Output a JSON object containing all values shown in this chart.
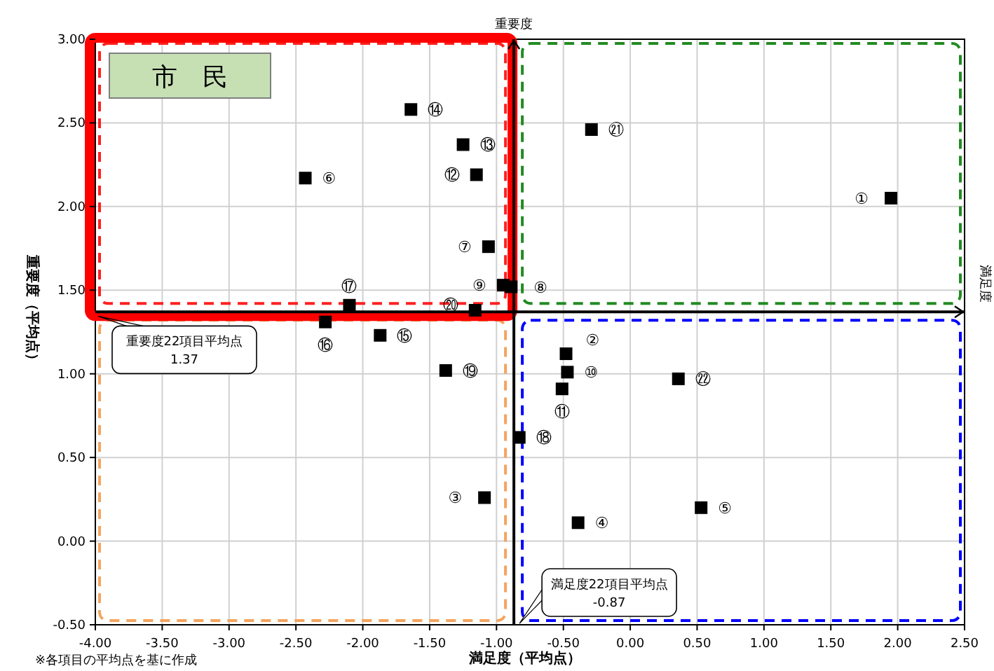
{
  "chart_data": {
    "type": "scatter",
    "title": "市　民",
    "xlabel": "満足度（平均点）",
    "ylabel": "重要度（平均点）",
    "annotations": [
      "重要度",
      "満足度",
      "※各項目の平均点を基に作成"
    ],
    "xlim": [
      -4,
      2.5
    ],
    "ylim": [
      -0.5,
      3
    ],
    "xticks": [
      {
        "value": -4,
        "label": "-4.00"
      },
      {
        "value": -3.5,
        "label": "-3.50"
      },
      {
        "value": -3,
        "label": "-3.00"
      },
      {
        "value": -2.5,
        "label": "-2.50"
      },
      {
        "value": -2,
        "label": "-2.00"
      },
      {
        "value": -1.5,
        "label": "-1.50"
      },
      {
        "value": -1,
        "label": "-1.00"
      },
      {
        "value": -0.5,
        "label": "-0.50"
      },
      {
        "value": 0,
        "label": "0.00"
      },
      {
        "value": 0.5,
        "label": "0.50"
      },
      {
        "value": 1,
        "label": "1.00"
      },
      {
        "value": 1.5,
        "label": "1.50"
      },
      {
        "value": 2,
        "label": "2.00"
      },
      {
        "value": 2.5,
        "label": "2.50"
      }
    ],
    "yticks": [
      {
        "value": -0.5,
        "label": "-0.50"
      },
      {
        "value": 0,
        "label": "0.00"
      },
      {
        "value": 0.5,
        "label": "0.50"
      },
      {
        "value": 1,
        "label": "1.00"
      },
      {
        "value": 1.5,
        "label": "1.50"
      },
      {
        "value": 2,
        "label": "2.00"
      },
      {
        "value": 2.5,
        "label": "2.50"
      },
      {
        "value": 3,
        "label": "3.00"
      }
    ],
    "grid": true,
    "marker": "square",
    "ref_lines": [
      {
        "axis": "y",
        "value": 1.37,
        "label": "重要度22項目平均点\n1.37",
        "color": "#000000"
      },
      {
        "axis": "x",
        "value": -0.87,
        "label": "満足度22項目平均点\n-0.87",
        "color": "#000000"
      }
    ],
    "series": [
      {
        "name": "①",
        "color": "#000000",
        "x": [
          1.95
        ],
        "values": [
          2.05
        ]
      },
      {
        "name": "②",
        "color": "#000000",
        "x": [
          -0.48
        ],
        "values": [
          1.12
        ]
      },
      {
        "name": "③",
        "color": "#000000",
        "x": [
          -1.09
        ],
        "values": [
          0.26
        ]
      },
      {
        "name": "④",
        "color": "#000000",
        "x": [
          -0.39
        ],
        "values": [
          0.11
        ]
      },
      {
        "name": "⑤",
        "color": "#000000",
        "x": [
          0.53
        ],
        "values": [
          0.2
        ]
      },
      {
        "name": "⑥",
        "color": "#000000",
        "x": [
          -2.43
        ],
        "values": [
          2.17
        ]
      },
      {
        "name": "⑦",
        "color": "#000000",
        "x": [
          -1.06
        ],
        "values": [
          1.76
        ]
      },
      {
        "name": "⑧",
        "color": "#000000",
        "x": [
          -0.89
        ],
        "values": [
          1.52
        ]
      },
      {
        "name": "⑨",
        "color": "#000000",
        "x": [
          -0.95
        ],
        "values": [
          1.53
        ]
      },
      {
        "name": "⑩",
        "color": "#000000",
        "x": [
          -0.47
        ],
        "values": [
          1.01
        ]
      },
      {
        "name": "⑪",
        "color": "#000000",
        "x": [
          -0.51
        ],
        "values": [
          0.91
        ]
      },
      {
        "name": "⑫",
        "color": "#000000",
        "x": [
          -1.15
        ],
        "values": [
          2.19
        ]
      },
      {
        "name": "⑬",
        "color": "#000000",
        "x": [
          -1.25
        ],
        "values": [
          2.37
        ]
      },
      {
        "name": "⑭",
        "color": "#000000",
        "x": [
          -1.64
        ],
        "values": [
          2.58
        ]
      },
      {
        "name": "⑮",
        "color": "#000000",
        "x": [
          -1.87
        ],
        "values": [
          1.23
        ]
      },
      {
        "name": "⑯",
        "color": "#000000",
        "x": [
          -2.28
        ],
        "values": [
          1.31
        ]
      },
      {
        "name": "⑰",
        "color": "#000000",
        "x": [
          -2.1
        ],
        "values": [
          1.41
        ]
      },
      {
        "name": "⑱",
        "color": "#000000",
        "x": [
          -0.83
        ],
        "values": [
          0.62
        ]
      },
      {
        "name": "⑲",
        "color": "#000000",
        "x": [
          -1.38
        ],
        "values": [
          1.02
        ]
      },
      {
        "name": "⑳",
        "color": "#000000",
        "x": [
          -1.16
        ],
        "values": [
          1.38
        ]
      },
      {
        "name": "㉑",
        "color": "#000000",
        "x": [
          -0.29
        ],
        "values": [
          2.46
        ]
      },
      {
        "name": "㉒",
        "color": "#000000",
        "x": [
          0.36
        ],
        "values": [
          0.97
        ]
      }
    ]
  }
}
